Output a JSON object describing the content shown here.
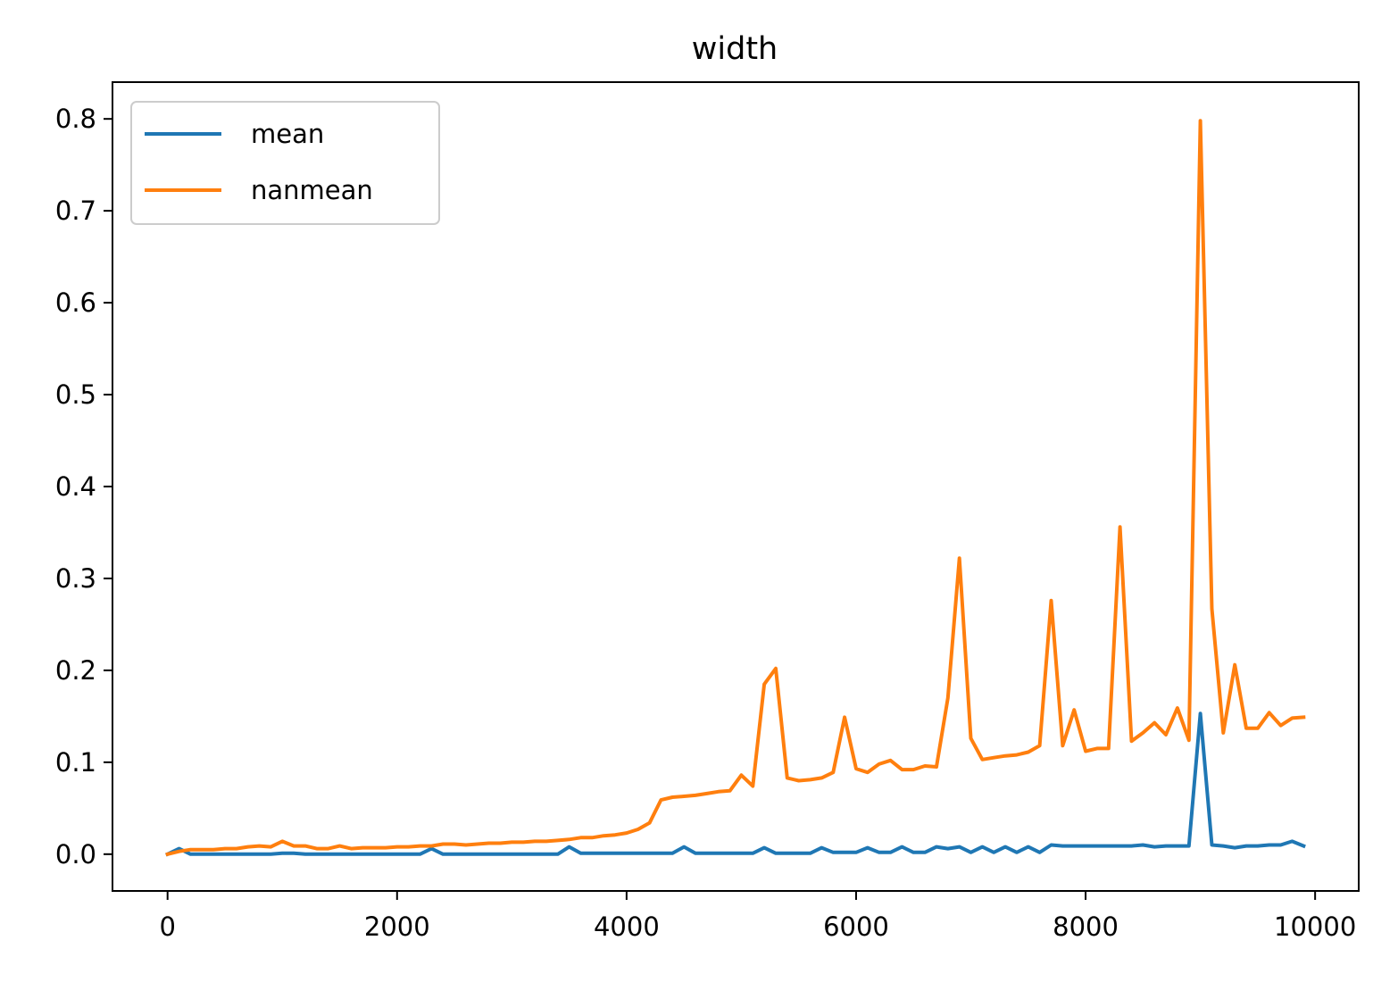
{
  "chart_data": {
    "type": "line",
    "title": "width",
    "xlabel": "",
    "ylabel": "",
    "xlim": [
      -480,
      10380
    ],
    "ylim": [
      -0.04,
      0.84
    ],
    "x_ticks": [
      0,
      2000,
      4000,
      6000,
      8000,
      10000
    ],
    "x_tick_labels": [
      "0",
      "2000",
      "4000",
      "6000",
      "8000",
      "10000"
    ],
    "y_ticks": [
      0.0,
      0.1,
      0.2,
      0.3,
      0.4,
      0.5,
      0.6,
      0.7,
      0.8
    ],
    "y_tick_labels": [
      "0.0",
      "0.1",
      "0.2",
      "0.3",
      "0.4",
      "0.5",
      "0.6",
      "0.7",
      "0.8"
    ],
    "grid": false,
    "legend": {
      "position": "top-left",
      "entries": [
        "mean",
        "nanmean"
      ]
    },
    "x": [
      0,
      100,
      200,
      300,
      400,
      500,
      600,
      700,
      800,
      900,
      1000,
      1100,
      1200,
      1300,
      1400,
      1500,
      1600,
      1700,
      1800,
      1900,
      2000,
      2100,
      2200,
      2300,
      2400,
      2500,
      2600,
      2700,
      2800,
      2900,
      3000,
      3100,
      3200,
      3300,
      3400,
      3500,
      3600,
      3700,
      3800,
      3900,
      4000,
      4100,
      4200,
      4300,
      4400,
      4500,
      4600,
      4700,
      4800,
      4900,
      5000,
      5100,
      5200,
      5300,
      5400,
      5500,
      5600,
      5700,
      5800,
      5900,
      6000,
      6100,
      6200,
      6300,
      6400,
      6500,
      6600,
      6700,
      6800,
      6900,
      7000,
      7100,
      7200,
      7300,
      7400,
      7500,
      7600,
      7700,
      7800,
      7900,
      8000,
      8100,
      8200,
      8300,
      8400,
      8500,
      8600,
      8700,
      8800,
      8900,
      9000,
      9100,
      9200,
      9300,
      9400,
      9500,
      9600,
      9700,
      9800,
      9900
    ],
    "series": [
      {
        "name": "mean",
        "color": "#1f77b4",
        "values": [
          0,
          0.006,
          0,
          0,
          0,
          0,
          0,
          0,
          0,
          0,
          0.001,
          0.001,
          0,
          0,
          0,
          0,
          0,
          0,
          0,
          0,
          0,
          0,
          0,
          0.006,
          0,
          0,
          0,
          0,
          0,
          0,
          0,
          0,
          0,
          0,
          0,
          0.008,
          0.001,
          0.001,
          0.001,
          0.001,
          0.001,
          0.001,
          0.001,
          0.001,
          0.001,
          0.008,
          0.001,
          0.001,
          0.001,
          0.001,
          0.001,
          0.001,
          0.007,
          0.001,
          0.001,
          0.001,
          0.001,
          0.007,
          0.002,
          0.002,
          0.002,
          0.007,
          0.002,
          0.002,
          0.008,
          0.002,
          0.002,
          0.008,
          0.006,
          0.008,
          0.002,
          0.008,
          0.002,
          0.008,
          0.002,
          0.008,
          0.002,
          0.01,
          0.009,
          0.009,
          0.009,
          0.009,
          0.009,
          0.009,
          0.009,
          0.01,
          0.008,
          0.009,
          0.009,
          0.009,
          0.153,
          0.01,
          0.009,
          0.007,
          0.009,
          0.009,
          0.01,
          0.01,
          0.014,
          0.009
        ]
      },
      {
        "name": "nanmean",
        "color": "#ff7f0e",
        "values": [
          0,
          0.003,
          0.005,
          0.005,
          0.005,
          0.006,
          0.006,
          0.008,
          0.009,
          0.008,
          0.014,
          0.009,
          0.009,
          0.006,
          0.006,
          0.009,
          0.006,
          0.007,
          0.007,
          0.007,
          0.008,
          0.008,
          0.009,
          0.009,
          0.011,
          0.011,
          0.01,
          0.011,
          0.012,
          0.012,
          0.013,
          0.013,
          0.014,
          0.014,
          0.015,
          0.016,
          0.018,
          0.018,
          0.02,
          0.021,
          0.023,
          0.027,
          0.034,
          0.059,
          0.062,
          0.063,
          0.064,
          0.066,
          0.068,
          0.069,
          0.086,
          0.074,
          0.185,
          0.202,
          0.083,
          0.08,
          0.081,
          0.083,
          0.089,
          0.149,
          0.093,
          0.089,
          0.098,
          0.102,
          0.092,
          0.092,
          0.096,
          0.095,
          0.17,
          0.322,
          0.126,
          0.103,
          0.105,
          0.107,
          0.108,
          0.111,
          0.118,
          0.276,
          0.118,
          0.157,
          0.112,
          0.115,
          0.115,
          0.356,
          0.123,
          0.132,
          0.143,
          0.13,
          0.159,
          0.124,
          0.798,
          0.267,
          0.132,
          0.206,
          0.137,
          0.137,
          0.154,
          0.14,
          0.148,
          0.149
        ]
      }
    ]
  }
}
